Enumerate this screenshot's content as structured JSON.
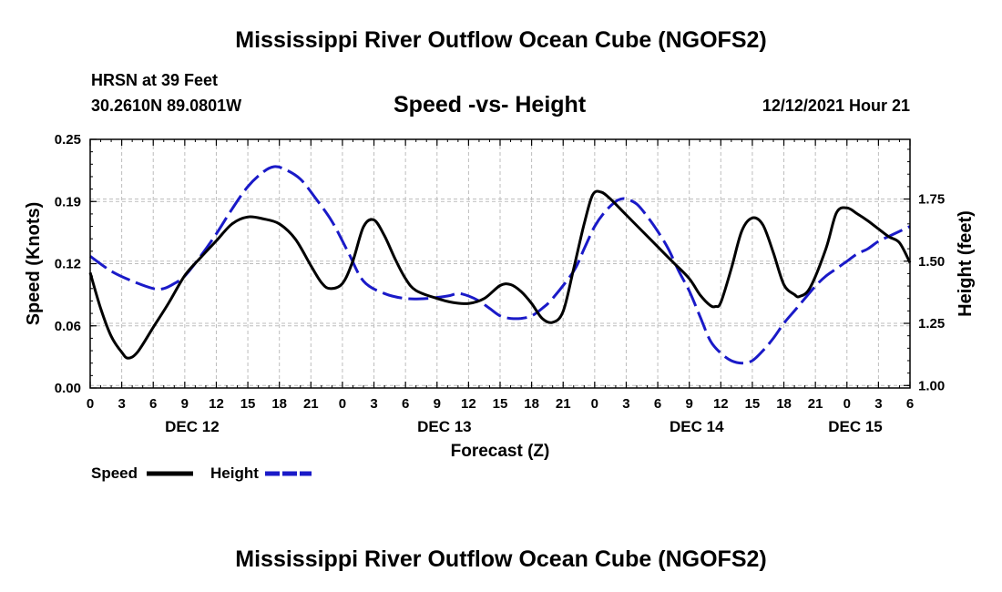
{
  "header": {
    "title_top": "Mississippi River Outflow Ocean Cube (NGOFS2)",
    "title_bottom": "Mississippi River Outflow Ocean Cube (NGOFS2)",
    "station": "HRSN at 39 Feet",
    "coords": "30.2610N  89.0801W",
    "subtitle": "Speed -vs- Height",
    "datetime": "12/12/2021 Hour 21"
  },
  "chart_data": {
    "type": "line",
    "title": "Speed -vs- Height",
    "xlabel": "Forecast (Z)",
    "ylabel": "Speed (Knots)",
    "y2label": "Height (feet)",
    "x_hours_range": [
      0,
      78
    ],
    "ylim": [
      0,
      0.25
    ],
    "y2lim": [
      0.99,
      1.99
    ],
    "yticks": [
      "0.00",
      "0.06",
      "0.12",
      "0.19",
      "0.25"
    ],
    "yticks_values": [
      0,
      0.0625,
      0.125,
      0.1875,
      0.25
    ],
    "y2ticks": [
      "1.00",
      "1.25",
      "1.50",
      "1.75"
    ],
    "y2ticks_values": [
      1.0,
      1.25,
      1.5,
      1.75
    ],
    "xtick_labels": [
      "0",
      "3",
      "6",
      "9",
      "12",
      "15",
      "18",
      "21",
      "0",
      "3",
      "6",
      "9",
      "12",
      "15",
      "18",
      "21",
      "0",
      "3",
      "6",
      "9",
      "12",
      "15",
      "18",
      "21",
      "0",
      "3",
      "6"
    ],
    "date_labels": [
      {
        "label": "DEC 12",
        "hour": 9.7
      },
      {
        "label": "DEC 13",
        "hour": 33.7
      },
      {
        "label": "DEC 14",
        "hour": 57.7
      },
      {
        "label": "DEC 15",
        "hour": 72.8
      }
    ],
    "legend": [
      "Speed",
      "Height"
    ],
    "series": [
      {
        "name": "Speed",
        "axis": "left",
        "color": "#000000",
        "dash": "solid",
        "points": [
          [
            0,
            0.116
          ],
          [
            1,
            0.08
          ],
          [
            2,
            0.052
          ],
          [
            3,
            0.036
          ],
          [
            3.6,
            0.03
          ],
          [
            4.5,
            0.036
          ],
          [
            6,
            0.061
          ],
          [
            7.5,
            0.086
          ],
          [
            9,
            0.113
          ],
          [
            10.5,
            0.131
          ],
          [
            12,
            0.148
          ],
          [
            13.5,
            0.165
          ],
          [
            15,
            0.172
          ],
          [
            16.5,
            0.17
          ],
          [
            18,
            0.165
          ],
          [
            19.5,
            0.15
          ],
          [
            21,
            0.123
          ],
          [
            22,
            0.106
          ],
          [
            22.8,
            0.1
          ],
          [
            24,
            0.105
          ],
          [
            25,
            0.128
          ],
          [
            26,
            0.162
          ],
          [
            27,
            0.169
          ],
          [
            28,
            0.153
          ],
          [
            29,
            0.13
          ],
          [
            30,
            0.11
          ],
          [
            31,
            0.098
          ],
          [
            33,
            0.09
          ],
          [
            34.5,
            0.086
          ],
          [
            36,
            0.085
          ],
          [
            37.5,
            0.09
          ],
          [
            39,
            0.103
          ],
          [
            40,
            0.104
          ],
          [
            41,
            0.097
          ],
          [
            42,
            0.085
          ],
          [
            43,
            0.07
          ],
          [
            44,
            0.066
          ],
          [
            45,
            0.077
          ],
          [
            46,
            0.12
          ],
          [
            47,
            0.165
          ],
          [
            47.8,
            0.194
          ],
          [
            48.6,
            0.197
          ],
          [
            49.5,
            0.19
          ],
          [
            51,
            0.174
          ],
          [
            52.5,
            0.158
          ],
          [
            54,
            0.142
          ],
          [
            55.5,
            0.126
          ],
          [
            57,
            0.11
          ],
          [
            58,
            0.094
          ],
          [
            59,
            0.083
          ],
          [
            59.5,
            0.082
          ],
          [
            60,
            0.086
          ],
          [
            61,
            0.12
          ],
          [
            62,
            0.158
          ],
          [
            63,
            0.171
          ],
          [
            64,
            0.164
          ],
          [
            65,
            0.136
          ],
          [
            66,
            0.104
          ],
          [
            67,
            0.094
          ],
          [
            67.5,
            0.092
          ],
          [
            68.5,
            0.101
          ],
          [
            70,
            0.14
          ],
          [
            71,
            0.176
          ],
          [
            72,
            0.181
          ],
          [
            73,
            0.175
          ],
          [
            74,
            0.168
          ],
          [
            75,
            0.16
          ],
          [
            76,
            0.152
          ],
          [
            77,
            0.146
          ],
          [
            78,
            0.126
          ]
        ]
      },
      {
        "name": "Height",
        "axis": "right",
        "color": "#1a1ac8",
        "dash": "dashed",
        "points": [
          [
            0,
            1.52
          ],
          [
            2,
            1.46
          ],
          [
            4,
            1.42
          ],
          [
            6,
            1.39
          ],
          [
            7,
            1.39
          ],
          [
            8,
            1.41
          ],
          [
            9,
            1.44
          ],
          [
            10.5,
            1.52
          ],
          [
            12,
            1.61
          ],
          [
            13.5,
            1.71
          ],
          [
            15,
            1.8
          ],
          [
            16.5,
            1.86
          ],
          [
            17.5,
            1.88
          ],
          [
            18.5,
            1.87
          ],
          [
            20,
            1.83
          ],
          [
            21.5,
            1.75
          ],
          [
            23,
            1.66
          ],
          [
            24.5,
            1.54
          ],
          [
            26,
            1.42
          ],
          [
            28,
            1.37
          ],
          [
            30,
            1.35
          ],
          [
            32,
            1.35
          ],
          [
            34,
            1.36
          ],
          [
            35,
            1.37
          ],
          [
            36,
            1.36
          ],
          [
            37,
            1.34
          ],
          [
            38,
            1.31
          ],
          [
            39,
            1.28
          ],
          [
            40,
            1.27
          ],
          [
            41,
            1.27
          ],
          [
            42,
            1.28
          ],
          [
            43,
            1.31
          ],
          [
            44,
            1.35
          ],
          [
            46,
            1.46
          ],
          [
            47,
            1.55
          ],
          [
            48,
            1.64
          ],
          [
            49,
            1.7
          ],
          [
            50,
            1.74
          ],
          [
            50.5,
            1.75
          ],
          [
            51,
            1.75
          ],
          [
            52,
            1.73
          ],
          [
            53,
            1.68
          ],
          [
            54,
            1.62
          ],
          [
            55,
            1.55
          ],
          [
            56,
            1.46
          ],
          [
            57,
            1.38
          ],
          [
            58,
            1.28
          ],
          [
            59,
            1.18
          ],
          [
            60,
            1.13
          ],
          [
            61,
            1.1
          ],
          [
            62,
            1.09
          ],
          [
            63,
            1.1
          ],
          [
            64,
            1.14
          ],
          [
            65,
            1.19
          ],
          [
            66,
            1.25
          ],
          [
            67,
            1.3
          ],
          [
            68,
            1.35
          ],
          [
            69,
            1.4
          ],
          [
            70,
            1.44
          ],
          [
            71,
            1.47
          ],
          [
            72,
            1.5
          ],
          [
            73,
            1.53
          ],
          [
            74,
            1.55
          ],
          [
            75,
            1.58
          ],
          [
            76,
            1.6
          ],
          [
            77,
            1.62
          ],
          [
            78,
            1.64
          ]
        ]
      }
    ]
  }
}
